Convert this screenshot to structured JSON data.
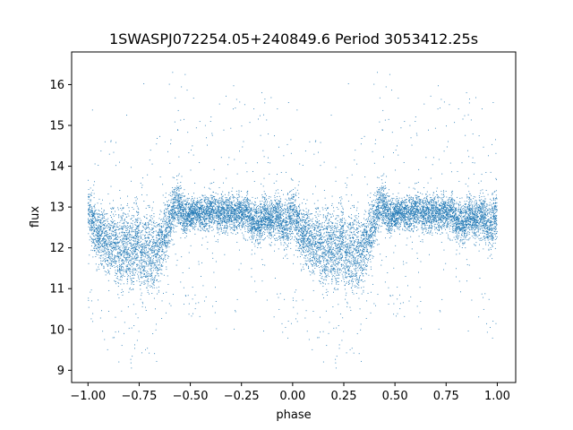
{
  "chart_data": {
    "type": "scatter",
    "title": "1SWASPJ072254.05+240849.6 Period 3053412.25s",
    "xlabel": "phase",
    "ylabel": "flux",
    "xlim": [
      -1.08,
      1.09
    ],
    "ylim": [
      8.7,
      16.8
    ],
    "x_ticks": [
      -1.0,
      -0.75,
      -0.5,
      -0.25,
      0.0,
      0.25,
      0.5,
      0.75,
      1.0
    ],
    "x_tick_labels": [
      "−1.00",
      "−0.75",
      "−0.50",
      "−0.25",
      "0.00",
      "0.25",
      "0.50",
      "0.75",
      "1.00"
    ],
    "y_ticks": [
      9,
      10,
      11,
      12,
      13,
      14,
      15,
      16
    ],
    "y_tick_labels": [
      "9",
      "10",
      "11",
      "12",
      "13",
      "14",
      "15",
      "16"
    ],
    "grid": false,
    "marker_color": "#1f77b4",
    "phase_range": [
      -1.0,
      1.0
    ],
    "profile_phase": [
      0.0,
      0.02,
      0.04,
      0.06,
      0.08,
      0.1,
      0.12,
      0.14,
      0.16,
      0.18,
      0.2,
      0.22,
      0.24,
      0.26,
      0.28,
      0.3,
      0.32,
      0.34,
      0.36,
      0.38,
      0.4,
      0.42,
      0.44,
      0.46,
      0.48,
      0.5,
      0.52,
      0.54,
      0.56,
      0.58,
      0.6,
      0.62,
      0.64,
      0.66,
      0.68,
      0.7,
      0.72,
      0.74,
      0.76,
      0.78,
      0.8,
      0.82,
      0.84,
      0.86,
      0.88,
      0.9,
      0.92,
      0.94,
      0.96,
      0.98,
      1.0
    ],
    "profile_flux": [
      12.9,
      12.7,
      12.3,
      12.4,
      12.2,
      12.0,
      12.3,
      11.9,
      12.0,
      12.2,
      12.0,
      11.8,
      12.3,
      11.7,
      12.0,
      11.8,
      11.9,
      11.9,
      12.2,
      12.4,
      12.6,
      13.0,
      13.1,
      12.9,
      12.8,
      12.8,
      12.9,
      12.8,
      12.8,
      12.8,
      12.9,
      12.9,
      12.8,
      12.9,
      12.8,
      12.9,
      12.8,
      12.9,
      12.8,
      12.9,
      12.6,
      12.6,
      12.6,
      12.8,
      12.7,
      12.7,
      12.8,
      12.7,
      12.5,
      12.6,
      12.9
    ],
    "profile_spread": [
      0.5,
      0.55,
      0.6,
      0.6,
      0.65,
      0.7,
      0.7,
      0.8,
      0.8,
      0.75,
      0.8,
      0.9,
      0.8,
      0.9,
      0.85,
      0.85,
      0.85,
      0.8,
      0.75,
      0.7,
      0.6,
      0.5,
      0.5,
      0.45,
      0.4,
      0.35,
      0.35,
      0.35,
      0.35,
      0.35,
      0.4,
      0.4,
      0.4,
      0.4,
      0.4,
      0.4,
      0.4,
      0.4,
      0.4,
      0.4,
      0.45,
      0.45,
      0.45,
      0.45,
      0.45,
      0.45,
      0.5,
      0.5,
      0.55,
      0.6,
      0.6
    ]
  }
}
